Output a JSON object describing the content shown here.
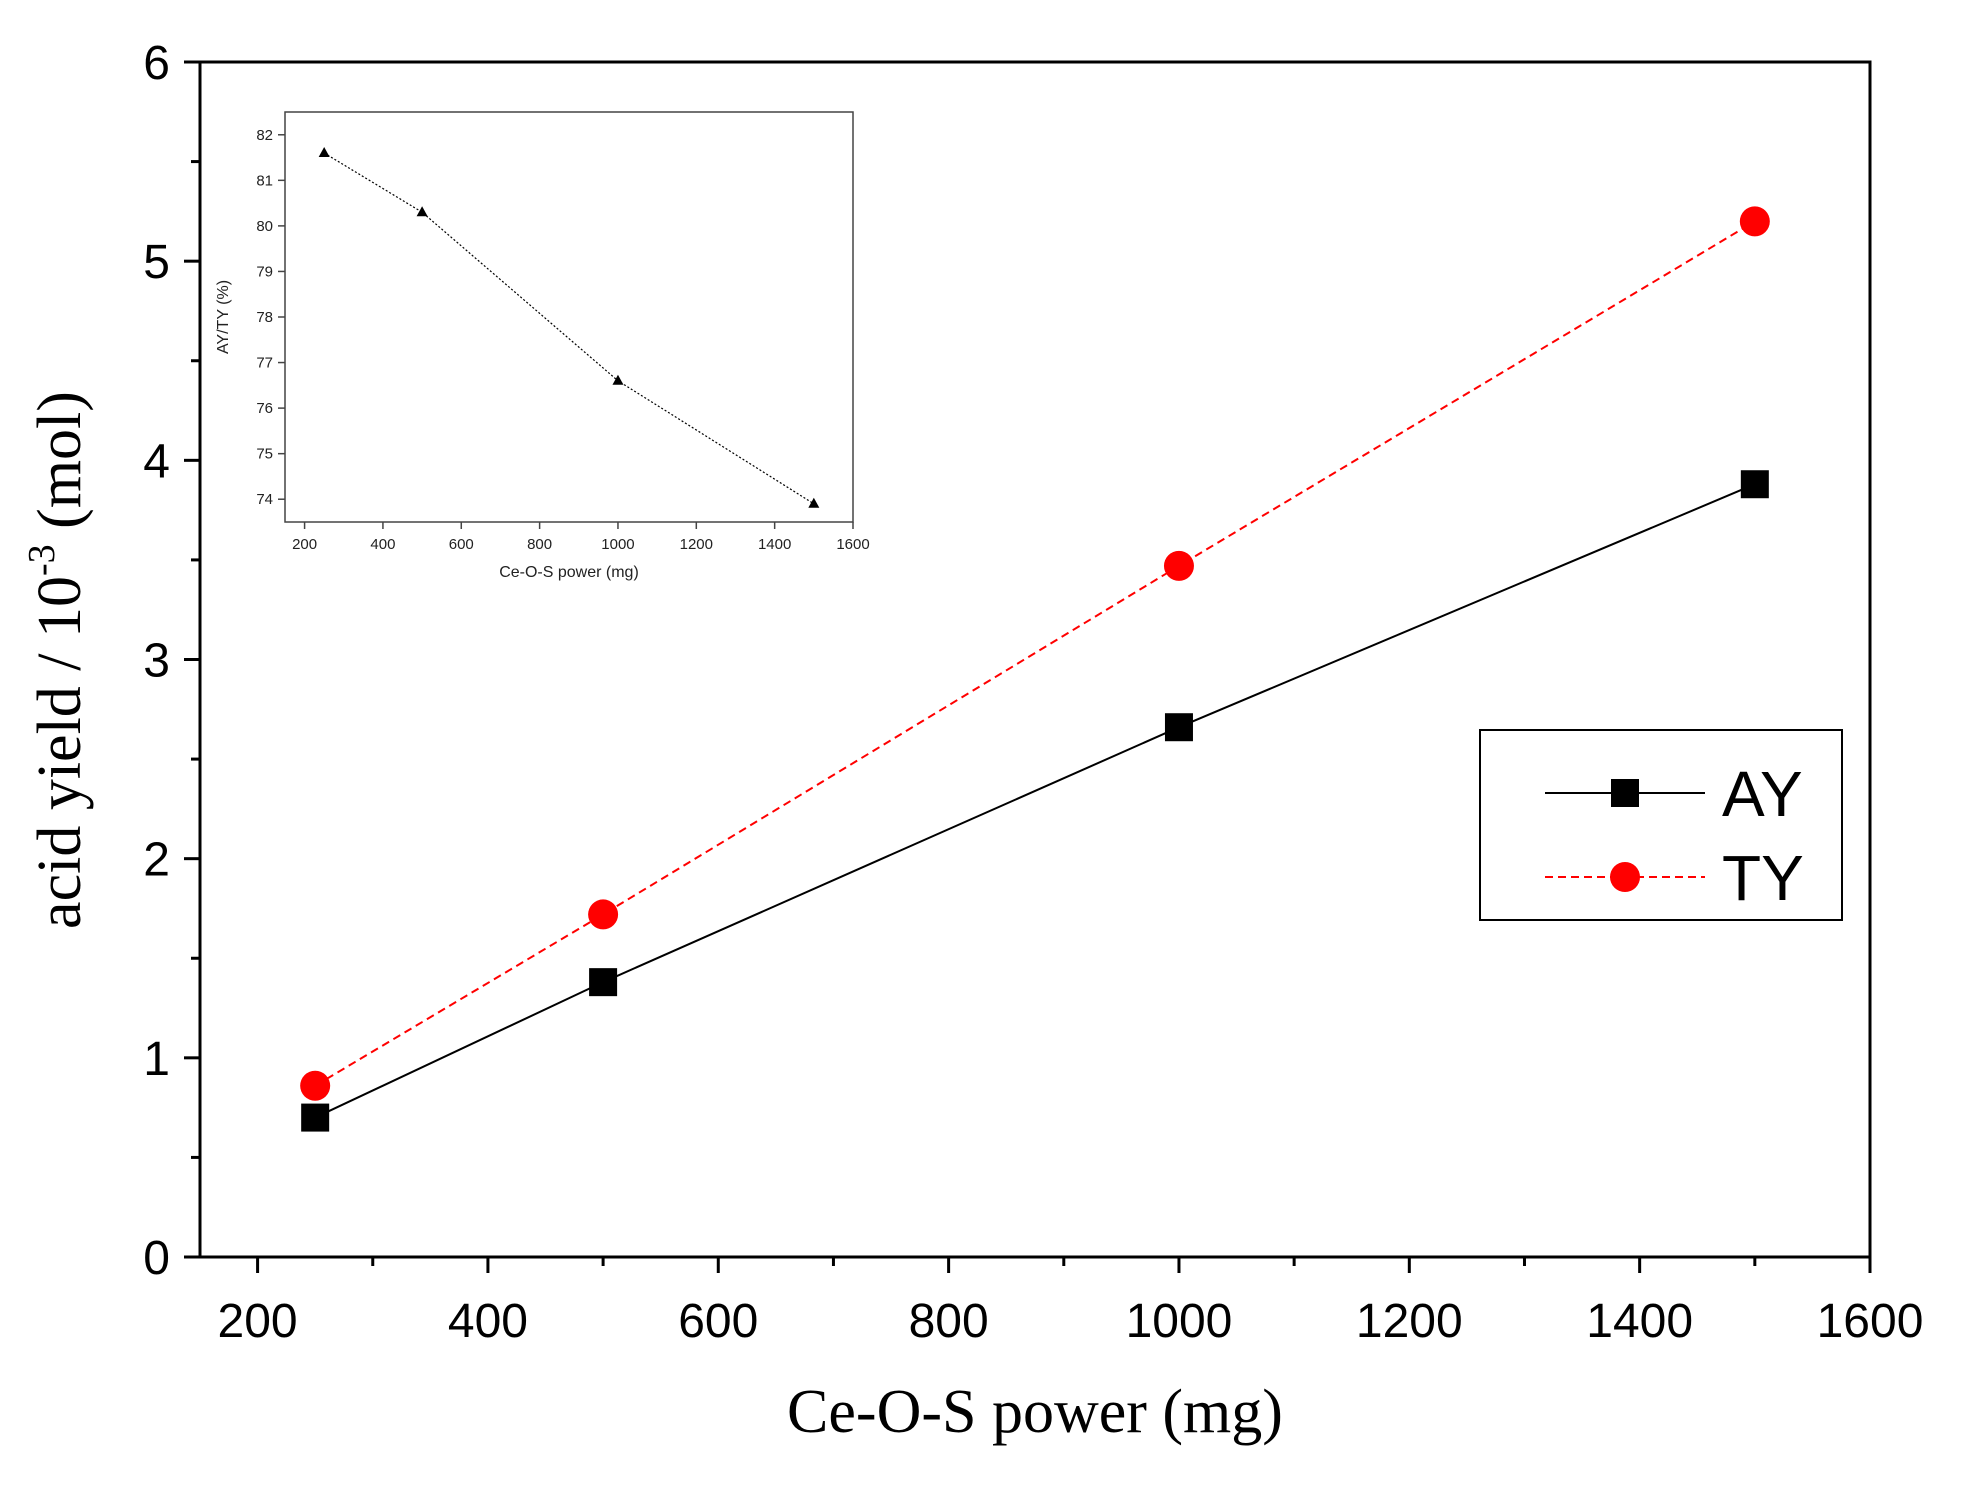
{
  "chart_data": [
    {
      "type": "line",
      "xlabel": "Ce-O-S power (mg)",
      "ylabel_main": "acid yield / 10",
      "ylabel_exp": "-3",
      "ylabel_unit": " (mol)",
      "xlim": [
        150,
        1600
      ],
      "ylim": [
        0,
        6
      ],
      "x_ticks": [
        "200",
        "400",
        "600",
        "800",
        "1000",
        "1200",
        "1400",
        "1600"
      ],
      "y_ticks": [
        "0",
        "1",
        "2",
        "3",
        "4",
        "5",
        "6"
      ],
      "x": [
        250,
        500,
        1000,
        1500
      ],
      "series": [
        {
          "name": "AY",
          "values": [
            0.7,
            1.38,
            2.66,
            3.88
          ],
          "color": "#000000",
          "marker": "square",
          "dash": "solid"
        },
        {
          "name": "TY",
          "values": [
            0.86,
            1.72,
            3.47,
            5.2
          ],
          "color": "#ff0000",
          "marker": "circle",
          "dash": "dashed"
        }
      ],
      "legend": "center-right"
    },
    {
      "type": "line",
      "role": "inset",
      "xlabel": "Ce-O-S power (mg)",
      "ylabel": "AY/TY (%)",
      "xlim": [
        150,
        1600
      ],
      "ylim": [
        73.5,
        82.5
      ],
      "x_ticks": [
        "200",
        "400",
        "600",
        "800",
        "1000",
        "1200",
        "1400",
        "1600"
      ],
      "y_ticks": [
        "74",
        "75",
        "76",
        "77",
        "78",
        "79",
        "80",
        "81",
        "82"
      ],
      "x": [
        250,
        500,
        1000,
        1500
      ],
      "series": [
        {
          "name": "AY/TY",
          "values": [
            81.6,
            80.3,
            76.6,
            73.9
          ],
          "color": "#000000",
          "marker": "triangle",
          "dash": "dotted"
        }
      ]
    }
  ]
}
